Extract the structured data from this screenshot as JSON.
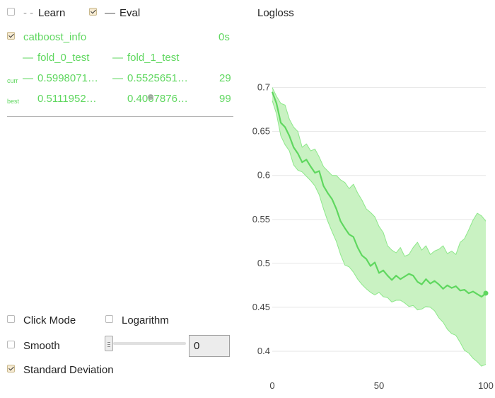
{
  "legend": {
    "learn_label": "Learn",
    "learn_dash": "- -",
    "learn_checked": false,
    "eval_label": "Eval",
    "eval_dash": "—",
    "eval_checked": true
  },
  "run": {
    "name": "catboost_info",
    "time": "0s",
    "checked": true,
    "series": [
      {
        "name": "fold_0_test",
        "marker": "—",
        "curr": "0.5998071…",
        "best": "0.5111952…"
      },
      {
        "name": "fold_1_test",
        "marker": "—",
        "curr": "0.5525651…",
        "best": "0.4067876…"
      }
    ],
    "curr_label": "curr",
    "best_label": "best",
    "curr_iter": "29",
    "best_iter": "99"
  },
  "controls": {
    "click_mode_label": "Click Mode",
    "click_mode_checked": false,
    "logarithm_label": "Logarithm",
    "logarithm_checked": false,
    "smooth_label": "Smooth",
    "smooth_checked": false,
    "smooth_value": "0",
    "std_label": "Standard Deviation",
    "std_checked": true
  },
  "chart_data": {
    "type": "line",
    "title": "Logloss",
    "xlabel": "",
    "ylabel": "",
    "xlim": [
      0,
      100
    ],
    "ylim": [
      0.375,
      0.715
    ],
    "yticks": [
      "0.7",
      "0.65",
      "0.6",
      "0.55",
      "0.5",
      "0.45",
      "0.4"
    ],
    "xticks": [
      "0",
      "50",
      "100"
    ],
    "colors": {
      "line": "#5fd75f",
      "band": "#c9f2c2",
      "band_edge": "#8de88a",
      "grid": "#e6e6e6"
    },
    "series": [
      {
        "name": "mean",
        "x": [
          0,
          2,
          4,
          6,
          8,
          10,
          12,
          14,
          16,
          18,
          20,
          22,
          24,
          26,
          28,
          30,
          32,
          34,
          36,
          38,
          40,
          42,
          44,
          46,
          48,
          50,
          52,
          54,
          56,
          58,
          60,
          62,
          64,
          66,
          68,
          70,
          72,
          74,
          76,
          78,
          80,
          82,
          84,
          86,
          88,
          90,
          92,
          94,
          96,
          98,
          100
        ],
        "values": [
          0.695,
          0.682,
          0.66,
          0.655,
          0.645,
          0.632,
          0.625,
          0.615,
          0.618,
          0.61,
          0.603,
          0.605,
          0.588,
          0.58,
          0.573,
          0.562,
          0.548,
          0.54,
          0.533,
          0.53,
          0.518,
          0.509,
          0.505,
          0.497,
          0.501,
          0.489,
          0.492,
          0.486,
          0.481,
          0.486,
          0.482,
          0.485,
          0.488,
          0.486,
          0.479,
          0.476,
          0.482,
          0.477,
          0.48,
          0.476,
          0.471,
          0.475,
          0.472,
          0.474,
          0.469,
          0.47,
          0.466,
          0.468,
          0.465,
          0.462,
          0.466
        ]
      },
      {
        "name": "upper",
        "x": [
          0,
          2,
          4,
          6,
          8,
          10,
          12,
          14,
          16,
          18,
          20,
          22,
          24,
          26,
          28,
          30,
          32,
          34,
          36,
          38,
          40,
          42,
          44,
          46,
          48,
          50,
          52,
          54,
          56,
          58,
          60,
          62,
          64,
          66,
          68,
          70,
          72,
          74,
          76,
          78,
          80,
          82,
          84,
          86,
          88,
          90,
          92,
          94,
          96,
          98,
          100
        ],
        "values": [
          0.7,
          0.69,
          0.682,
          0.68,
          0.664,
          0.655,
          0.65,
          0.632,
          0.636,
          0.628,
          0.63,
          0.621,
          0.61,
          0.605,
          0.6,
          0.6,
          0.595,
          0.592,
          0.585,
          0.59,
          0.58,
          0.572,
          0.562,
          0.558,
          0.553,
          0.542,
          0.535,
          0.52,
          0.515,
          0.512,
          0.518,
          0.508,
          0.51,
          0.518,
          0.524,
          0.515,
          0.52,
          0.51,
          0.514,
          0.516,
          0.52,
          0.511,
          0.514,
          0.51,
          0.524,
          0.528,
          0.538,
          0.549,
          0.557,
          0.554,
          0.548
        ]
      },
      {
        "name": "lower",
        "x": [
          0,
          2,
          4,
          6,
          8,
          10,
          12,
          14,
          16,
          18,
          20,
          22,
          24,
          26,
          28,
          30,
          32,
          34,
          36,
          38,
          40,
          42,
          44,
          46,
          48,
          50,
          52,
          54,
          56,
          58,
          60,
          62,
          64,
          66,
          68,
          70,
          72,
          74,
          76,
          78,
          80,
          82,
          84,
          86,
          88,
          90,
          92,
          94,
          96,
          98,
          100
        ],
        "values": [
          0.685,
          0.67,
          0.645,
          0.635,
          0.628,
          0.612,
          0.606,
          0.604,
          0.599,
          0.594,
          0.588,
          0.578,
          0.562,
          0.548,
          0.536,
          0.525,
          0.51,
          0.498,
          0.496,
          0.49,
          0.482,
          0.476,
          0.471,
          0.467,
          0.464,
          0.467,
          0.462,
          0.461,
          0.456,
          0.458,
          0.458,
          0.455,
          0.451,
          0.452,
          0.447,
          0.448,
          0.451,
          0.45,
          0.446,
          0.438,
          0.433,
          0.425,
          0.42,
          0.418,
          0.41,
          0.401,
          0.398,
          0.392,
          0.388,
          0.383,
          0.385
        ]
      }
    ]
  }
}
